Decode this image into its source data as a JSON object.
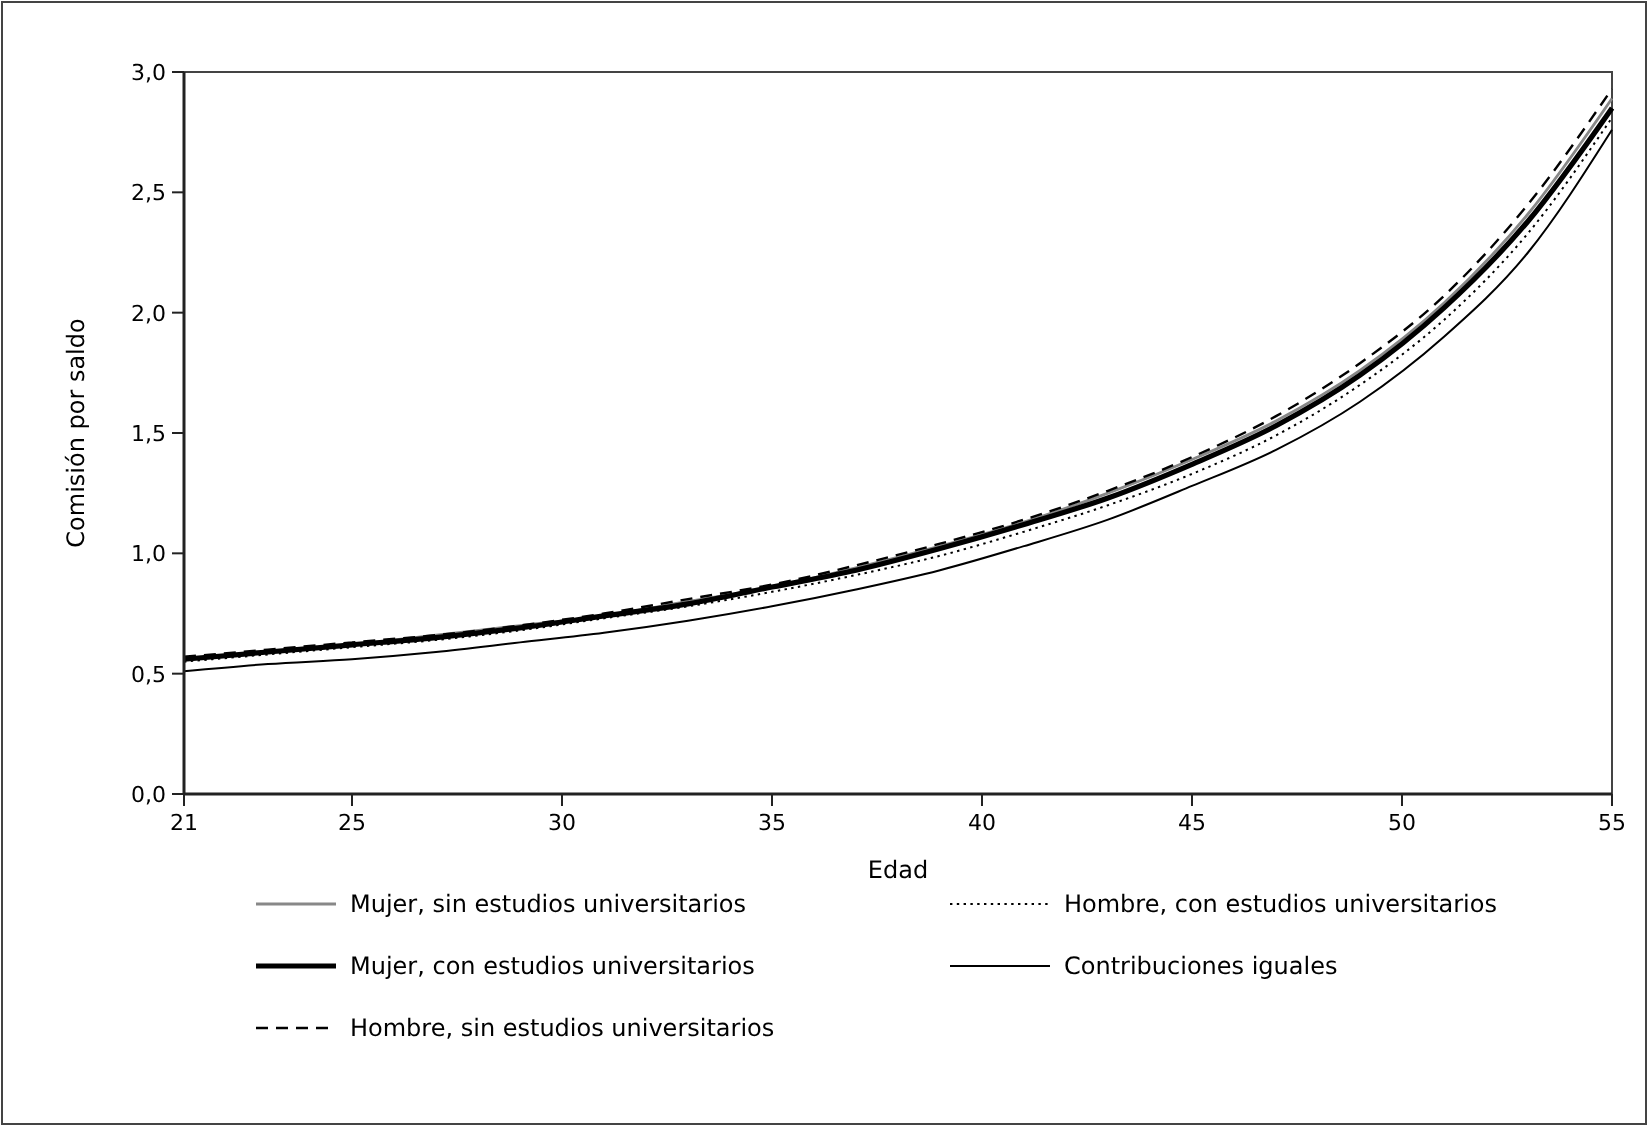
{
  "chart_data": {
    "type": "line",
    "xlabel": "Edad",
    "ylabel": "Comisión por saldo",
    "x": [
      21,
      23,
      25,
      27,
      29,
      31,
      33,
      35,
      37,
      39,
      41,
      43,
      45,
      47,
      49,
      51,
      53,
      55
    ],
    "xlim": [
      21,
      55
    ],
    "xticks": [
      21,
      25,
      30,
      35,
      40,
      45,
      50,
      55
    ],
    "ylim": [
      0,
      3
    ],
    "yticks": [
      {
        "value": 0,
        "label": "0,0"
      },
      {
        "value": 0.5,
        "label": "0,5"
      },
      {
        "value": 1,
        "label": "1,0"
      },
      {
        "value": 1.5,
        "label": "1,5"
      },
      {
        "value": 2,
        "label": "2,0"
      },
      {
        "value": 2.5,
        "label": "2,5"
      },
      {
        "value": 3,
        "label": "3,0"
      }
    ],
    "grid": false,
    "legend": "bottom",
    "marker": "none",
    "series": [
      {
        "name": "Mujer, sin estudios universitarios",
        "color": "#888888",
        "line_style": "solid",
        "values": [
          0.56,
          0.59,
          0.62,
          0.66,
          0.7,
          0.74,
          0.8,
          0.86,
          0.94,
          1.03,
          1.13,
          1.25,
          1.39,
          1.55,
          1.76,
          2.04,
          2.41,
          2.89
        ]
      },
      {
        "name": "Hombre, con estudios universitarios",
        "color": "#000000",
        "line_style": "dotted",
        "values": [
          0.55,
          0.58,
          0.61,
          0.64,
          0.68,
          0.73,
          0.78,
          0.84,
          0.91,
          0.99,
          1.09,
          1.2,
          1.33,
          1.49,
          1.7,
          1.97,
          2.33,
          2.81
        ]
      },
      {
        "name": "Mujer, con estudios universitarios",
        "color": "#000000",
        "line_style": "solid",
        "values": [
          0.56,
          0.59,
          0.62,
          0.65,
          0.69,
          0.74,
          0.79,
          0.86,
          0.93,
          1.02,
          1.12,
          1.23,
          1.37,
          1.53,
          1.74,
          2.02,
          2.38,
          2.85
        ]
      },
      {
        "name": "Contribuciones iguales",
        "color": "#000000",
        "line_style": "solid",
        "values": [
          0.51,
          0.54,
          0.56,
          0.59,
          0.63,
          0.67,
          0.72,
          0.78,
          0.85,
          0.93,
          1.03,
          1.14,
          1.28,
          1.43,
          1.63,
          1.9,
          2.25,
          2.76
        ]
      },
      {
        "name": "Hombre, sin estudios universitarios",
        "color": "#000000",
        "line_style": "dashed",
        "values": [
          0.57,
          0.6,
          0.63,
          0.66,
          0.7,
          0.75,
          0.81,
          0.87,
          0.95,
          1.04,
          1.14,
          1.26,
          1.4,
          1.57,
          1.79,
          2.07,
          2.45,
          2.93
        ]
      }
    ]
  }
}
